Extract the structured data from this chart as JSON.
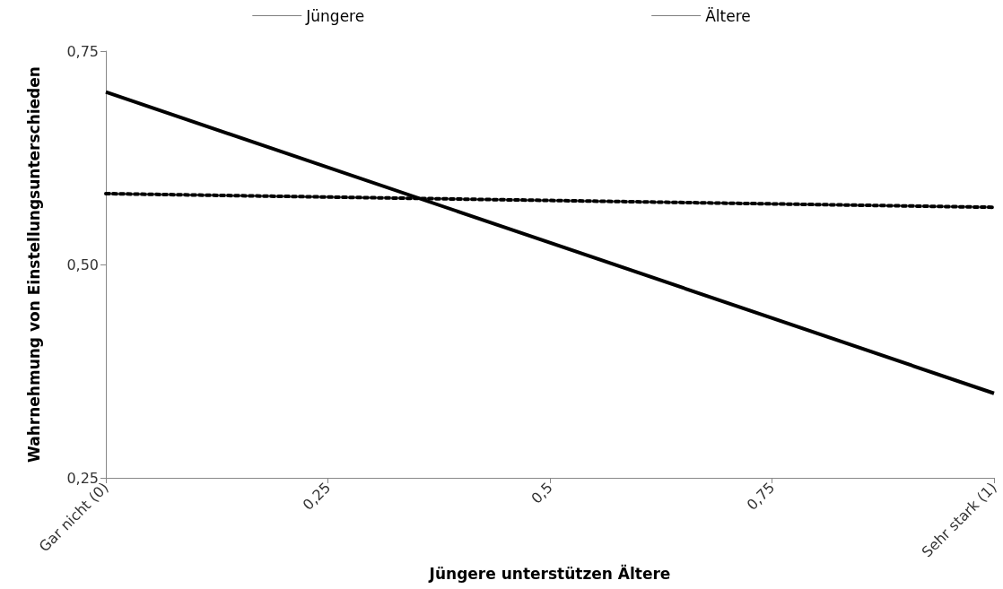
{
  "chart_data": {
    "type": "line",
    "xlabel": "Jüngere unterstützen Ältere",
    "ylabel": "Wahrnehmung von Einstellungsunterschieden",
    "x": [
      0,
      1
    ],
    "series": [
      {
        "name": "Jüngere",
        "color": "#000000",
        "line_style": "dotted",
        "values": [
          0.583,
          0.567
        ]
      },
      {
        "name": "Ältere",
        "color": "#000000",
        "line_style": "solid",
        "values": [
          0.702,
          0.349
        ]
      }
    ],
    "xlim": [
      0,
      1
    ],
    "xticks": [
      {
        "value": 0,
        "label": "Gar nicht (0)"
      },
      {
        "value": 0.25,
        "label": "0,25"
      },
      {
        "value": 0.5,
        "label": "0,5"
      },
      {
        "value": 0.75,
        "label": "0,75"
      },
      {
        "value": 1,
        "label": "Sehr stark (1)"
      }
    ],
    "ylim": [
      0.25,
      0.75
    ],
    "yticks": [
      {
        "value": 0.25,
        "label": "0,25"
      },
      {
        "value": 0.5,
        "label": "0,50"
      },
      {
        "value": 0.75,
        "label": "0,75"
      }
    ],
    "grid": false,
    "legend": "top",
    "marker": "none"
  }
}
